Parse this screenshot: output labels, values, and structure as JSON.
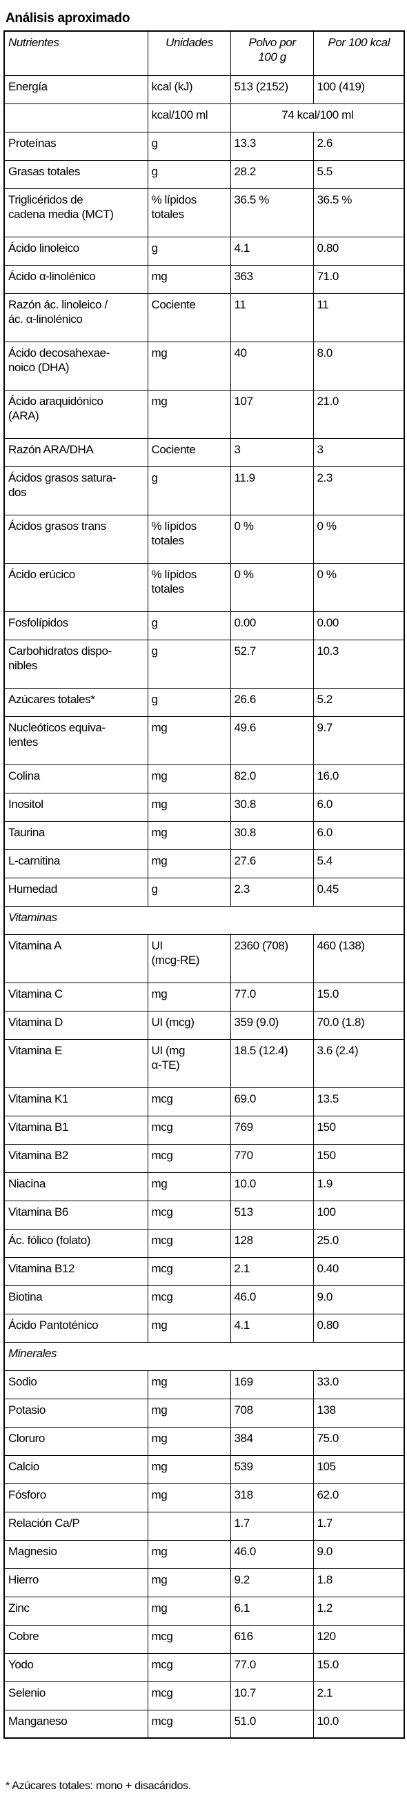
{
  "title": "Análisis aproximado",
  "table": {
    "header": [
      "Nutrientes",
      "Unidades",
      "Polvo por\n100 g",
      "Por 100 kcal"
    ],
    "rows": [
      [
        "Energía",
        "kcal (kJ)",
        "513 (2152)",
        "100 (419)"
      ],
      [
        null,
        "kcal/100 ml",
        "74 kcal/100 ml"
      ],
      [
        "Proteínas",
        "g",
        "13.3",
        "2.6"
      ],
      [
        "Grasas totales",
        "g",
        "28.2",
        "5.5"
      ],
      [
        "Triglicéridos de\ncadena media (MCT)",
        "% lípidos\ntotales",
        "36.5 %",
        "36.5 %"
      ],
      [
        "Ácido linoleico",
        "g",
        "4.1",
        "0.80"
      ],
      [
        "Ácido α-linolénico",
        "mg",
        "363",
        "71.0"
      ],
      [
        "Razón ác. linoleico /\nác. α-linolénico",
        "Cociente",
        "11",
        "11"
      ],
      [
        "Ácido decosahexae-\nnoico (DHA)",
        "mg",
        "40",
        "8.0"
      ],
      [
        "Ácido araquidónico\n(ARA)",
        "mg",
        "107",
        "21.0"
      ],
      [
        "Razón ARA/DHA",
        "Cociente",
        "3",
        "3"
      ],
      [
        "Ácidos grasos satura-\ndos",
        "g",
        "11.9",
        "2.3"
      ],
      [
        "Ácidos grasos trans",
        "% lípidos\ntotales",
        "0 %",
        "0 %"
      ],
      [
        "Ácido erúcico",
        "% lípidos\ntotales",
        "0 %",
        "0 %"
      ],
      [
        "Fosfolípidos",
        "g",
        "0.00",
        "0.00"
      ],
      [
        "Carbohidratos dispo-\nnibles",
        "g",
        "52.7",
        "10.3"
      ],
      [
        "Azúcares totales*",
        "g",
        "26.6",
        "5.2"
      ],
      [
        "Nucleóticos equiva-\nlentes",
        "mg",
        "49.6",
        "9.7"
      ],
      [
        "Colina",
        "mg",
        "82.0",
        "16.0"
      ],
      [
        "Inositol",
        "mg",
        "30.8",
        "6.0"
      ],
      [
        "Taurina",
        "mg",
        "30.8",
        "6.0"
      ],
      [
        "L-carnitina",
        "mg",
        "27.6",
        "5.4"
      ],
      [
        "Humedad",
        "g",
        "2.3",
        "0.45"
      ],
      [
        "Vitaminas"
      ],
      [
        "Vitamina A",
        "UI\n(mcg-RE)",
        "2360 (708)",
        "460 (138)"
      ],
      [
        "Vitamina C",
        "mg",
        "77.0",
        "15.0"
      ],
      [
        "Vitamina D",
        "UI (mcg)",
        "359 (9.0)",
        "70.0 (1.8)"
      ],
      [
        "Vitamina E",
        "UI (mg\nα-TE)",
        "18.5 (12.4)",
        "3.6 (2.4)"
      ],
      [
        "Vitamina K1",
        "mcg",
        "69.0",
        "13.5"
      ],
      [
        "Vitamina B1",
        "mcg",
        "769",
        "150"
      ],
      [
        "Vitamina B2",
        "mcg",
        "770",
        "150"
      ],
      [
        "Niacina",
        "mg",
        "10.0",
        "1.9"
      ],
      [
        "Vitamina B6",
        "mcg",
        "513",
        "100"
      ],
      [
        "Ác. fólico (folato)",
        "mcg",
        "128",
        "25.0"
      ],
      [
        "Vitamina B12",
        "mcg",
        "2.1",
        "0.40"
      ],
      [
        "Biotina",
        "mcg",
        "46.0",
        "9.0"
      ],
      [
        "Ácido Pantoténico",
        "mg",
        "4.1",
        "0.80"
      ],
      [
        "Minerales"
      ],
      [
        "Sodio",
        "mg",
        "169",
        "33.0"
      ],
      [
        "Potasio",
        "mg",
        "708",
        "138"
      ],
      [
        "Cloruro",
        "mg",
        "384",
        "75.0"
      ],
      [
        "Calcio",
        "mg",
        "539",
        "105"
      ],
      [
        "Fósforo",
        "mg",
        "318",
        "62.0"
      ],
      [
        "Relación Ca/P",
        null,
        "1.7",
        "1.7"
      ],
      [
        "Magnesio",
        "mg",
        "46.0",
        "9.0"
      ],
      [
        "Hierro",
        "mg",
        "9.2",
        "1.8"
      ],
      [
        "Zinc",
        "mg",
        "6.1",
        "1.2"
      ],
      [
        "Cobre",
        "mcg",
        "616",
        "120"
      ],
      [
        "Yodo",
        "mcg",
        "77.0",
        "15.0"
      ],
      [
        "Selenio",
        "mcg",
        "10.7",
        "2.1"
      ],
      [
        "Manganeso",
        "mcg",
        "51.0",
        "10.0"
      ]
    ]
  },
  "footnote": "* Azúcares totales: mono + disacáridos."
}
